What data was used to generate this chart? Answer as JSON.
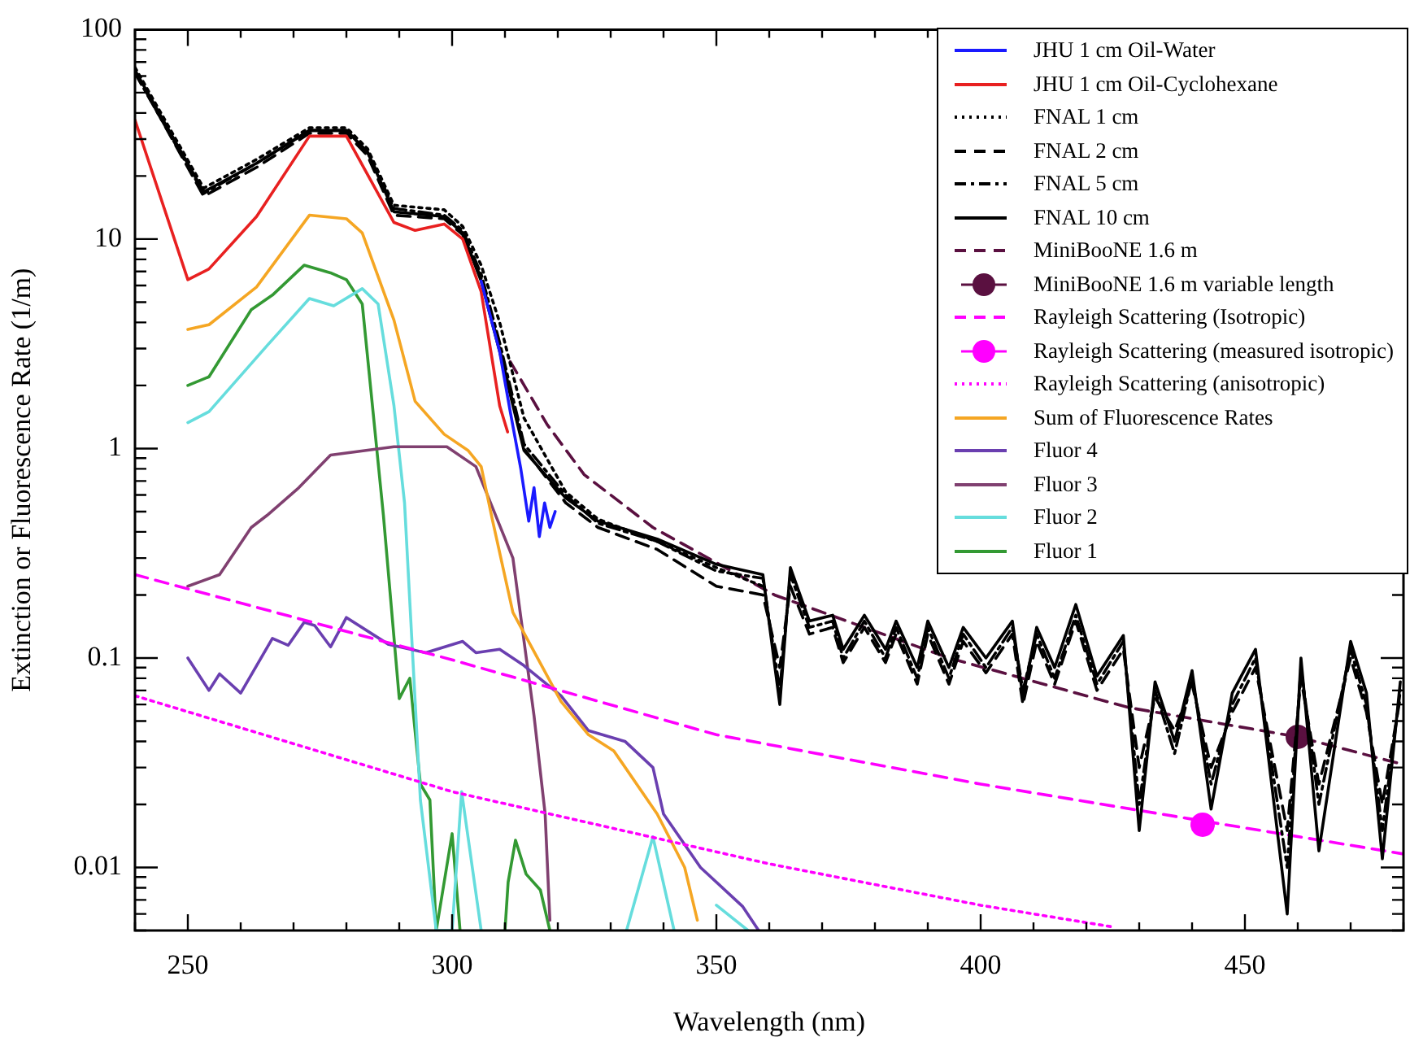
{
  "chart_data": {
    "type": "line",
    "xlabel": "Wavelength (nm)",
    "ylabel": "Extinction or Fluorescence Rate (1/m)",
    "log": "y",
    "grid": false,
    "legend": "top right",
    "xlim": [
      240,
      480
    ],
    "xticks": [
      {
        "value": 240,
        "label": null
      },
      250,
      {
        "value": 260,
        "label": null
      },
      {
        "value": 270,
        "label": null
      },
      {
        "value": 280,
        "label": null
      },
      {
        "value": 290,
        "label": null
      },
      300,
      {
        "value": 310,
        "label": null
      },
      {
        "value": 320,
        "label": null
      },
      {
        "value": 330,
        "label": null
      },
      {
        "value": 340,
        "label": null
      },
      350,
      {
        "value": 360,
        "label": null
      },
      {
        "value": 370,
        "label": null
      },
      {
        "value": 380,
        "label": null
      },
      {
        "value": 390,
        "label": null
      },
      400,
      {
        "value": 410,
        "label": null
      },
      {
        "value": 420,
        "label": null
      },
      {
        "value": 430,
        "label": null
      },
      {
        "value": 440,
        "label": null
      },
      450,
      {
        "value": 460,
        "label": null
      },
      {
        "value": 470,
        "label": null
      },
      {
        "value": 480,
        "label": null
      }
    ],
    "ylim": [
      0.005,
      100
    ],
    "yticks": [
      {
        "value": 0.005,
        "label": null
      },
      {
        "value": 0.006,
        "label": null
      },
      {
        "value": 0.007,
        "label": null
      },
      {
        "value": 0.008,
        "label": null
      },
      {
        "value": 0.009,
        "label": null
      },
      0.01,
      {
        "value": 0.02,
        "label": null
      },
      {
        "value": 0.03,
        "label": null
      },
      {
        "value": 0.04,
        "label": null
      },
      {
        "value": 0.05,
        "label": null
      },
      {
        "value": 0.06,
        "label": null
      },
      {
        "value": 0.07,
        "label": null
      },
      {
        "value": 0.08,
        "label": null
      },
      {
        "value": 0.09,
        "label": null
      },
      0.1,
      {
        "value": 0.2,
        "label": null
      },
      {
        "value": 0.3,
        "label": null
      },
      {
        "value": 0.4,
        "label": null
      },
      {
        "value": 0.5,
        "label": null
      },
      {
        "value": 0.6,
        "label": null
      },
      {
        "value": 0.7,
        "label": null
      },
      {
        "value": 0.8,
        "label": null
      },
      {
        "value": 0.9,
        "label": null
      },
      1,
      {
        "value": 2,
        "label": null
      },
      {
        "value": 3,
        "label": null
      },
      {
        "value": 4,
        "label": null
      },
      {
        "value": 5,
        "label": null
      },
      {
        "value": 6,
        "label": null
      },
      {
        "value": 7,
        "label": null
      },
      {
        "value": 8,
        "label": null
      },
      {
        "value": 9,
        "label": null
      },
      10,
      {
        "value": 20,
        "label": null
      },
      {
        "value": 30,
        "label": null
      },
      {
        "value": 40,
        "label": null
      },
      {
        "value": 50,
        "label": null
      },
      {
        "value": 60,
        "label": null
      },
      {
        "value": 70,
        "label": null
      },
      {
        "value": 80,
        "label": null
      },
      {
        "value": 90,
        "label": null
      },
      100
    ],
    "series": [
      {
        "name": "JHU 1 cm Oil-Water",
        "color": "#1a1aff",
        "line_style": "solid",
        "x": [
          305.5,
          309,
          311,
          313,
          314.5,
          315.5,
          316.5,
          317.5,
          318.5,
          319.5
        ],
        "values": [
          6.3,
          2.9,
          1.5,
          0.8,
          0.45,
          0.65,
          0.38,
          0.55,
          0.42,
          0.5
        ]
      },
      {
        "name": "JHU 1 cm Oil-Cyclohexane",
        "color": "#e82020",
        "line_style": "solid",
        "x": [
          240,
          250,
          254,
          263,
          273,
          280,
          289,
          293,
          298.5,
          302,
          305.5,
          309,
          310.5
        ],
        "values": [
          37,
          6.4,
          7.2,
          12.8,
          31,
          31,
          12,
          11,
          11.8,
          10,
          5.6,
          1.6,
          1.2
        ]
      },
      {
        "name": "FNAL 1 cm",
        "color": "#000000",
        "line_style": "dotted",
        "x": [
          240,
          253,
          263,
          273,
          280,
          284,
          289,
          298.5,
          302,
          305.5,
          309,
          313.6,
          321.5,
          327.6,
          338.8,
          350,
          358.8
        ],
        "values": [
          66,
          17.5,
          24,
          34,
          34,
          27,
          14.5,
          13.8,
          11.5,
          7.5,
          4,
          1.4,
          0.62,
          0.46,
          0.36,
          0.27,
          0.22
        ]
      },
      {
        "name": "FNAL 2 cm",
        "color": "#000000",
        "line_style": "dashed",
        "x": [
          240,
          253,
          263,
          273,
          280,
          284,
          289,
          298.5,
          302,
          305.5,
          309,
          313.6,
          321.5,
          327.6,
          338.8,
          350,
          358.8,
          362,
          364,
          367.6,
          372,
          374,
          378,
          382,
          384,
          388,
          390,
          394,
          396.7,
          401,
          406,
          408,
          410.6,
          414,
          418,
          422,
          427,
          430,
          433,
          436.7,
          440,
          443.6,
          447.6,
          452,
          458,
          460.6,
          464,
          470,
          473,
          476,
          479.4
        ],
        "values": [
          63,
          16,
          22,
          32,
          32,
          25,
          13,
          12.5,
          10.5,
          6.5,
          3,
          1.0,
          0.55,
          0.42,
          0.33,
          0.22,
          0.2,
          0.09,
          0.22,
          0.13,
          0.14,
          0.095,
          0.14,
          0.095,
          0.13,
          0.075,
          0.13,
          0.075,
          0.12,
          0.085,
          0.13,
          0.06,
          0.12,
          0.075,
          0.15,
          0.07,
          0.11,
          0.03,
          0.065,
          0.045,
          0.075,
          0.03,
          0.055,
          0.09,
          0.015,
          0.08,
          0.025,
          0.1,
          0.055,
          0.02,
          0.065
        ]
      },
      {
        "name": "FNAL 5 cm",
        "color": "#000000",
        "line_style": "dashdot",
        "x": [
          240,
          253,
          263,
          273,
          280,
          284,
          289,
          298.5,
          302,
          305.5,
          309,
          313.6,
          321.5,
          327.6,
          338.8,
          350,
          358.8,
          362,
          364,
          367.6,
          372,
          374,
          378,
          382,
          384,
          388,
          390,
          394,
          396.7,
          401,
          406,
          408,
          410.6,
          414,
          418,
          422,
          427,
          430,
          433,
          436.7,
          440,
          443.6,
          447.6,
          452,
          458,
          460.6,
          464,
          470,
          473,
          476,
          479.4
        ],
        "values": [
          62,
          16.5,
          23,
          33,
          33,
          26,
          14,
          13,
          11,
          6.8,
          3.2,
          1.05,
          0.6,
          0.44,
          0.36,
          0.26,
          0.24,
          0.07,
          0.25,
          0.14,
          0.15,
          0.1,
          0.15,
          0.1,
          0.14,
          0.08,
          0.14,
          0.08,
          0.13,
          0.09,
          0.14,
          0.07,
          0.13,
          0.08,
          0.16,
          0.075,
          0.12,
          0.02,
          0.07,
          0.035,
          0.08,
          0.025,
          0.06,
          0.1,
          0.01,
          0.09,
          0.02,
          0.11,
          0.06,
          0.015,
          0.07
        ]
      },
      {
        "name": "FNAL 10 cm",
        "color": "#000000",
        "line_style": "solid",
        "x": [
          240,
          253,
          263,
          273,
          280,
          284,
          289,
          298.5,
          302,
          305.5,
          309,
          313.6,
          321.5,
          327.6,
          338.8,
          350,
          358.8,
          362,
          364,
          367.6,
          372,
          374,
          378,
          382,
          384,
          388,
          390,
          394,
          396.7,
          401,
          406,
          408,
          410.6,
          414,
          418,
          422,
          427,
          430,
          433,
          436.7,
          440,
          443.6,
          447.6,
          452,
          458,
          460.6,
          464,
          470,
          473,
          476,
          479.4
        ],
        "values": [
          64,
          16.8,
          23,
          33,
          33,
          26,
          13.5,
          12.8,
          10.7,
          6.3,
          2.9,
          0.98,
          0.58,
          0.45,
          0.37,
          0.28,
          0.25,
          0.06,
          0.27,
          0.15,
          0.16,
          0.11,
          0.16,
          0.11,
          0.15,
          0.09,
          0.15,
          0.09,
          0.14,
          0.1,
          0.15,
          0.065,
          0.14,
          0.09,
          0.18,
          0.082,
          0.128,
          0.015,
          0.077,
          0.04,
          0.087,
          0.019,
          0.068,
          0.11,
          0.006,
          0.1,
          0.012,
          0.12,
          0.068,
          0.011,
          0.077
        ]
      },
      {
        "name": "MiniBooNE 1.6 m",
        "color": "#5a1040",
        "line_style": "dashed",
        "x": [
          311,
          318,
          325,
          338,
          361,
          394,
          428,
          460,
          480
        ],
        "values": [
          2.6,
          1.3,
          0.75,
          0.42,
          0.2,
          0.1,
          0.058,
          0.042,
          0.031
        ]
      },
      {
        "name": "MiniBooNE 1.6 m variable length",
        "type": "scatter",
        "color": "#5a1040",
        "marker": "circle",
        "x": [
          460
        ],
        "values": [
          0.042
        ]
      },
      {
        "name": "Rayleigh Scattering (Isotropic)",
        "color": "#ff00ff",
        "line_style": "dashed",
        "x": [
          240,
          300,
          350,
          400,
          440,
          480
        ],
        "values": [
          0.25,
          0.098,
          0.043,
          0.025,
          0.017,
          0.0116
        ]
      },
      {
        "name": "Rayleigh Scattering (measured isotropic)",
        "type": "scatter",
        "color": "#ff00ff",
        "marker": "circle",
        "x": [
          442
        ],
        "values": [
          0.016
        ]
      },
      {
        "name": "Rayleigh Scattering (anisotropic)",
        "color": "#ff00ff",
        "line_style": "dotted",
        "x": [
          240,
          300,
          360,
          400,
          425
        ],
        "values": [
          0.066,
          0.023,
          0.0104,
          0.0066,
          0.0052
        ]
      },
      {
        "name": "Sum of Fluorescence Rates",
        "color": "#f5a623",
        "line_style": "solid",
        "x": [
          250,
          254,
          263,
          273,
          280,
          283,
          289,
          293,
          298.5,
          303,
          305.5,
          307.6,
          311.5,
          320.6,
          325.8,
          330.6,
          338.8,
          344,
          346.4
        ],
        "values": [
          3.7,
          3.9,
          5.9,
          13,
          12.5,
          10.7,
          4.1,
          1.68,
          1.17,
          0.98,
          0.82,
          0.46,
          0.165,
          0.062,
          0.043,
          0.036,
          0.018,
          0.01,
          0.0056
        ]
      },
      {
        "name": "Fluor 4",
        "color": "#6a3fb0",
        "line_style": "solid",
        "x": [
          250,
          254,
          256,
          260,
          266,
          269,
          272,
          274,
          277,
          280,
          288,
          295,
          302,
          304.5,
          309,
          313.6,
          320.6,
          325.8,
          332.7,
          338,
          340,
          347,
          355,
          358
        ],
        "values": [
          0.1,
          0.07,
          0.084,
          0.068,
          0.124,
          0.115,
          0.148,
          0.143,
          0.113,
          0.156,
          0.116,
          0.106,
          0.12,
          0.106,
          0.11,
          0.092,
          0.066,
          0.045,
          0.04,
          0.03,
          0.018,
          0.01,
          0.0065,
          0.005
        ]
      },
      {
        "name": "Fluor 3",
        "color": "#804070",
        "line_style": "solid",
        "x": [
          250,
          256,
          262,
          265,
          271,
          277,
          289,
          299,
          304.5,
          311.5,
          315.5,
          317.6,
          318.5
        ],
        "values": [
          0.22,
          0.25,
          0.42,
          0.48,
          0.65,
          0.93,
          1.02,
          1.02,
          0.82,
          0.3,
          0.053,
          0.018,
          0.0056
        ]
      },
      {
        "name": "Fluor 2",
        "color": "#66dddd",
        "line_style": "solid",
        "x": [
          250,
          254,
          265,
          273,
          277.6,
          283,
          286,
          289,
          291,
          294,
          297,
          300,
          301.8,
          305.5,
          320,
          333,
          338,
          342,
          346,
          350,
          356
        ],
        "values": [
          1.33,
          1.5,
          3.1,
          5.2,
          4.8,
          5.8,
          4.9,
          1.6,
          0.55,
          0.021,
          0.005,
          0.005,
          0.023,
          0.005,
          null,
          0.005,
          0.014,
          0.005,
          null,
          0.0066,
          0.005
        ]
      },
      {
        "name": "Fluor 1",
        "color": "#339933",
        "line_style": "solid",
        "x": [
          250,
          254,
          262,
          266,
          272,
          277,
          280,
          283,
          287,
          290,
          292,
          294,
          295.8,
          297,
          300,
          301.5,
          306,
          310,
          310.6,
          312,
          314,
          316.7,
          318.5
        ],
        "values": [
          2.0,
          2.2,
          4.6,
          5.4,
          7.5,
          6.9,
          6.4,
          4.9,
          0.48,
          0.064,
          0.08,
          0.025,
          0.021,
          0.005,
          0.0145,
          0.005,
          null,
          0.005,
          0.0085,
          0.0135,
          0.0093,
          0.0078,
          0.005
        ]
      }
    ]
  }
}
